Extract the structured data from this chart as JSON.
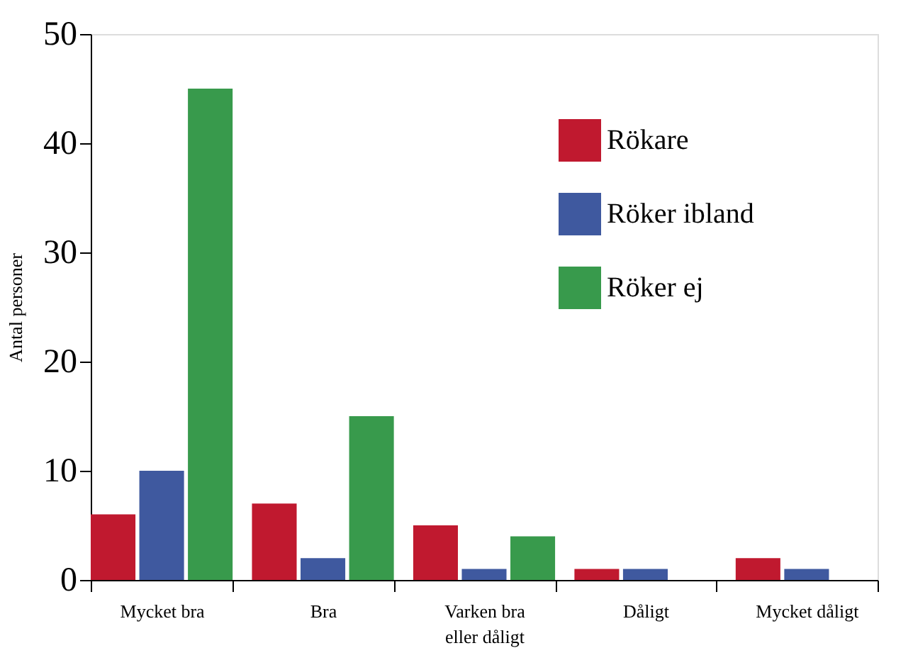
{
  "chart_data": {
    "type": "bar",
    "ylabel": "Antal personer",
    "categories": [
      "Mycket bra",
      "Bra",
      "Varken bra\neller dåligt",
      "Dåligt",
      "Mycket dåligt"
    ],
    "series": [
      {
        "name": "Rökare",
        "color": "#c0192f",
        "values": [
          6,
          7,
          5,
          1,
          2
        ]
      },
      {
        "name": "Röker ibland",
        "color": "#3f599f",
        "values": [
          10,
          2,
          1,
          1,
          1
        ]
      },
      {
        "name": "Röker ej",
        "color": "#389a4c",
        "values": [
          45,
          15,
          4,
          0,
          0
        ]
      }
    ],
    "ylim": [
      0,
      50
    ],
    "yticks": [
      0,
      10,
      20,
      30,
      40,
      50
    ],
    "grid": false,
    "legend": "top right"
  }
}
